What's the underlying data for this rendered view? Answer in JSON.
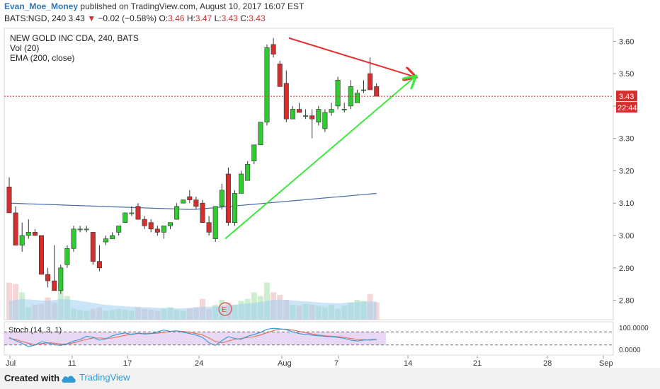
{
  "header": {
    "author": "Evan_Moe_Money",
    "published": "published on TradingView.com, August 10, 2017 16:07 EST",
    "symbol": "BATS:NGD, 240",
    "last": "3.43",
    "change": "−0.02 (−0.58%)",
    "o_label": "O:",
    "o": "3.46",
    "h_label": "H:",
    "h": "3.47",
    "l_label": "L:",
    "l": "3.43",
    "c_label": "C:",
    "c": "3.43"
  },
  "legend": [
    "NEW GOLD INC CDA, 240, BATS",
    "Vol (20)",
    "EMA (200, close)"
  ],
  "stoch_label": "Stoch (14, 3, 1)",
  "footer": {
    "created": "Created with",
    "brand": "TradingView"
  },
  "colors": {
    "up": "#2ecc2e",
    "down": "#d32f2f",
    "ema": "#4a6aa8",
    "stoch_k": "#2e9bd6",
    "stoch_d": "#e0705a",
    "stoch_band": "#e6d4f2",
    "brand": "#2e9bd6"
  },
  "chart_data": {
    "type": "candlestick",
    "ylim": [
      2.74,
      3.64
    ],
    "y_ticks": [
      "3.60",
      "3.50",
      "3.40",
      "3.30",
      "3.20",
      "3.10",
      "3.00",
      "2.90",
      "2.80"
    ],
    "x_ticks": [
      "Jul",
      "11",
      "17",
      "24",
      "Aug",
      "7",
      "14",
      "21",
      "28",
      "Sep"
    ],
    "price_label": "3.43",
    "countdown_label": "22:44",
    "candles": [
      {
        "o": 3.15,
        "h": 3.18,
        "l": 3.07,
        "c": 3.07
      },
      {
        "o": 3.07,
        "h": 3.09,
        "l": 2.97,
        "c": 2.97
      },
      {
        "o": 2.97,
        "h": 3.04,
        "l": 2.95,
        "c": 3.0
      },
      {
        "o": 3.0,
        "h": 3.05,
        "l": 2.99,
        "c": 3.01
      },
      {
        "o": 3.01,
        "h": 3.02,
        "l": 3.0,
        "c": 3.0
      },
      {
        "o": 3.0,
        "h": 3.0,
        "l": 2.88,
        "c": 2.88
      },
      {
        "o": 2.88,
        "h": 2.9,
        "l": 2.84,
        "c": 2.86
      },
      {
        "o": 2.86,
        "h": 2.97,
        "l": 2.83,
        "c": 2.83
      },
      {
        "o": 2.83,
        "h": 2.91,
        "l": 2.82,
        "c": 2.9
      },
      {
        "o": 2.91,
        "h": 2.97,
        "l": 2.9,
        "c": 2.96
      },
      {
        "o": 2.96,
        "h": 3.03,
        "l": 2.95,
        "c": 3.02
      },
      {
        "o": 3.02,
        "h": 3.03,
        "l": 3.01,
        "c": 3.02
      },
      {
        "o": 3.02,
        "h": 3.03,
        "l": 3.01,
        "c": 3.02
      },
      {
        "o": 3.01,
        "h": 3.01,
        "l": 2.91,
        "c": 2.92
      },
      {
        "o": 2.92,
        "h": 2.97,
        "l": 2.89,
        "c": 2.9
      },
      {
        "o": 2.98,
        "h": 3.0,
        "l": 2.97,
        "c": 2.99
      },
      {
        "o": 2.99,
        "h": 3.01,
        "l": 2.99,
        "c": 3.0
      },
      {
        "o": 3.01,
        "h": 3.03,
        "l": 3.0,
        "c": 3.03
      },
      {
        "o": 3.04,
        "h": 3.07,
        "l": 3.04,
        "c": 3.07
      },
      {
        "o": 3.07,
        "h": 3.09,
        "l": 3.06,
        "c": 3.07
      },
      {
        "o": 3.09,
        "h": 3.1,
        "l": 3.05,
        "c": 3.05
      },
      {
        "o": 3.05,
        "h": 3.06,
        "l": 3.02,
        "c": 3.03
      },
      {
        "o": 3.04,
        "h": 3.05,
        "l": 3.01,
        "c": 3.02
      },
      {
        "o": 3.02,
        "h": 3.03,
        "l": 3.0,
        "c": 3.01
      },
      {
        "o": 3.01,
        "h": 3.03,
        "l": 2.99,
        "c": 3.03
      },
      {
        "o": 3.03,
        "h": 3.04,
        "l": 3.02,
        "c": 3.04
      },
      {
        "o": 3.05,
        "h": 3.1,
        "l": 3.05,
        "c": 3.09
      },
      {
        "o": 3.1,
        "h": 3.11,
        "l": 3.1,
        "c": 3.11
      },
      {
        "o": 3.12,
        "h": 3.14,
        "l": 3.1,
        "c": 3.11
      },
      {
        "o": 3.11,
        "h": 3.12,
        "l": 3.08,
        "c": 3.09
      },
      {
        "o": 3.1,
        "h": 3.11,
        "l": 3.04,
        "c": 3.04
      },
      {
        "o": 3.04,
        "h": 3.06,
        "l": 3.0,
        "c": 3.01
      },
      {
        "o": 2.99,
        "h": 3.09,
        "l": 2.98,
        "c": 3.09
      },
      {
        "o": 3.09,
        "h": 3.16,
        "l": 3.08,
        "c": 3.14
      },
      {
        "o": 3.19,
        "h": 3.21,
        "l": 3.03,
        "c": 3.04
      },
      {
        "o": 3.04,
        "h": 3.14,
        "l": 3.03,
        "c": 3.13
      },
      {
        "o": 3.13,
        "h": 3.2,
        "l": 3.13,
        "c": 3.19
      },
      {
        "o": 3.17,
        "h": 3.23,
        "l": 3.17,
        "c": 3.22
      },
      {
        "o": 3.23,
        "h": 3.28,
        "l": 3.22,
        "c": 3.28
      },
      {
        "o": 3.28,
        "h": 3.35,
        "l": 3.28,
        "c": 3.35
      },
      {
        "o": 3.35,
        "h": 3.59,
        "l": 3.34,
        "c": 3.58
      },
      {
        "o": 3.59,
        "h": 3.61,
        "l": 3.55,
        "c": 3.56
      },
      {
        "o": 3.53,
        "h": 3.54,
        "l": 3.46,
        "c": 3.46
      },
      {
        "o": 3.47,
        "h": 3.51,
        "l": 3.35,
        "c": 3.36
      },
      {
        "o": 3.36,
        "h": 3.4,
        "l": 3.36,
        "c": 3.39
      },
      {
        "o": 3.39,
        "h": 3.41,
        "l": 3.38,
        "c": 3.38
      },
      {
        "o": 3.37,
        "h": 3.39,
        "l": 3.36,
        "c": 3.37
      },
      {
        "o": 3.37,
        "h": 3.39,
        "l": 3.3,
        "c": 3.36
      },
      {
        "o": 3.35,
        "h": 3.4,
        "l": 3.34,
        "c": 3.39
      },
      {
        "o": 3.33,
        "h": 3.39,
        "l": 3.32,
        "c": 3.38
      },
      {
        "o": 3.38,
        "h": 3.41,
        "l": 3.37,
        "c": 3.39
      },
      {
        "o": 3.4,
        "h": 3.49,
        "l": 3.39,
        "c": 3.48
      },
      {
        "o": 3.39,
        "h": 3.41,
        "l": 3.38,
        "c": 3.39
      },
      {
        "o": 3.4,
        "h": 3.48,
        "l": 3.39,
        "c": 3.46
      },
      {
        "o": 3.41,
        "h": 3.45,
        "l": 3.41,
        "c": 3.44
      },
      {
        "o": 3.45,
        "h": 3.48,
        "l": 3.44,
        "c": 3.45
      },
      {
        "o": 3.5,
        "h": 3.55,
        "l": 3.45,
        "c": 3.45
      },
      {
        "o": 3.46,
        "h": 3.47,
        "l": 3.43,
        "c": 3.43
      }
    ],
    "ema_200": {
      "start": 3.1,
      "mid": 3.08,
      "end": 3.13
    },
    "volume_relative": [
      0.75,
      0.72,
      0.55,
      0.25,
      0.3,
      0.32,
      0.45,
      0.35,
      0.6,
      0.48,
      0.22,
      0.2,
      0.18,
      0.22,
      0.25,
      0.18,
      0.2,
      0.22,
      0.2,
      0.18,
      0.25,
      0.22,
      0.2,
      0.18,
      0.22,
      0.25,
      0.2,
      0.18,
      0.22,
      0.25,
      0.42,
      0.22,
      0.3,
      0.4,
      0.35,
      0.3,
      0.38,
      0.42,
      0.55,
      0.48,
      0.75,
      0.55,
      0.5,
      0.4,
      0.3,
      0.28,
      0.32,
      0.3,
      0.28,
      0.25,
      0.3,
      0.22,
      0.28,
      0.35,
      0.4,
      0.38,
      0.52,
      0.35
    ],
    "volume_ma_relative": [
      0.38,
      0.4,
      0.42,
      0.41,
      0.4,
      0.39,
      0.38,
      0.4,
      0.42,
      0.41,
      0.4,
      0.38,
      0.36,
      0.34,
      0.32,
      0.3,
      0.29,
      0.28,
      0.27,
      0.26,
      0.26,
      0.25,
      0.25,
      0.24,
      0.24,
      0.24,
      0.23,
      0.23,
      0.24,
      0.25,
      0.26,
      0.26,
      0.27,
      0.28,
      0.29,
      0.3,
      0.32,
      0.33,
      0.34,
      0.36,
      0.38,
      0.4,
      0.4,
      0.4,
      0.39,
      0.38,
      0.37,
      0.36,
      0.35,
      0.34,
      0.34,
      0.33,
      0.34,
      0.35,
      0.36,
      0.36,
      0.37,
      0.37
    ],
    "stoch_ylim": [
      0,
      100
    ],
    "stoch_ticks": [
      "100.0000",
      "0.0000"
    ],
    "stoch_k": [
      55,
      40,
      28,
      12,
      20,
      35,
      30,
      22,
      18,
      26,
      38,
      45,
      60,
      55,
      42,
      48,
      62,
      70,
      75,
      68,
      74,
      70,
      72,
      80,
      88,
      82,
      85,
      78,
      72,
      65,
      55,
      30,
      18,
      40,
      58,
      50,
      46,
      60,
      68,
      78,
      92,
      96,
      94,
      90,
      80,
      72,
      68,
      65,
      62,
      60,
      58,
      55,
      50,
      42,
      38,
      42,
      44,
      45
    ],
    "stoch_d": [
      50,
      45,
      36,
      28,
      22,
      26,
      30,
      28,
      24,
      24,
      30,
      38,
      46,
      52,
      52,
      50,
      52,
      58,
      64,
      70,
      72,
      72,
      72,
      74,
      78,
      82,
      84,
      82,
      78,
      72,
      66,
      52,
      36,
      30,
      38,
      46,
      50,
      54,
      58,
      66,
      76,
      86,
      92,
      92,
      88,
      82,
      76,
      70,
      66,
      62,
      60,
      58,
      55,
      50,
      46,
      44,
      42,
      44
    ],
    "trendlines": [
      {
        "color": "red",
        "from": {
          "date": "Aug 1",
          "price": 3.61
        },
        "to": {
          "date": "Aug 15",
          "price": 3.49
        }
      },
      {
        "color": "green",
        "from": {
          "date": "Jul 27",
          "price": 2.99
        },
        "to": {
          "date": "Aug 15",
          "price": 3.49
        }
      }
    ],
    "earnings_marker": "E"
  }
}
